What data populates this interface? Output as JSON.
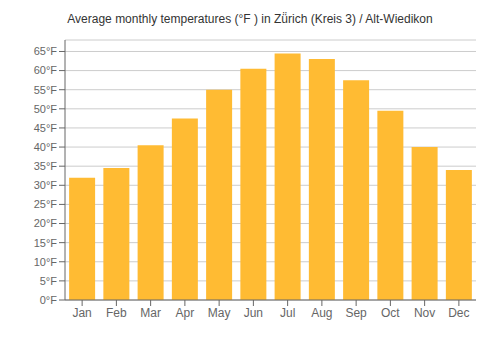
{
  "chart_data": {
    "type": "bar",
    "title": "Average monthly temperatures (°F ) in Zü̈rich (Kreis 3) / Alt-Wiedikon",
    "categories": [
      "Jan",
      "Feb",
      "Mar",
      "Apr",
      "May",
      "Jun",
      "Jul",
      "Aug",
      "Sep",
      "Oct",
      "Nov",
      "Dec"
    ],
    "values": [
      32,
      34.5,
      40.5,
      47.5,
      55,
      60.5,
      64.5,
      63,
      57.5,
      49.5,
      40,
      34
    ],
    "color": "#FFBB33",
    "ylim": [
      0,
      68
    ],
    "yticks": [
      {
        "value": 0,
        "label": "0°F"
      },
      {
        "value": 5,
        "label": "5°F"
      },
      {
        "value": 10,
        "label": "10°F"
      },
      {
        "value": 15,
        "label": "15°F"
      },
      {
        "value": 20,
        "label": "20°F"
      },
      {
        "value": 25,
        "label": "25°F"
      },
      {
        "value": 30,
        "label": "30°F"
      },
      {
        "value": 35,
        "label": "35°F"
      },
      {
        "value": 40,
        "label": "40°F"
      },
      {
        "value": 45,
        "label": "45°F"
      },
      {
        "value": 50,
        "label": "50°F"
      },
      {
        "value": 55,
        "label": "55°F"
      },
      {
        "value": 60,
        "label": "60°F"
      },
      {
        "value": 65,
        "label": "65°F"
      }
    ],
    "grid": true
  }
}
